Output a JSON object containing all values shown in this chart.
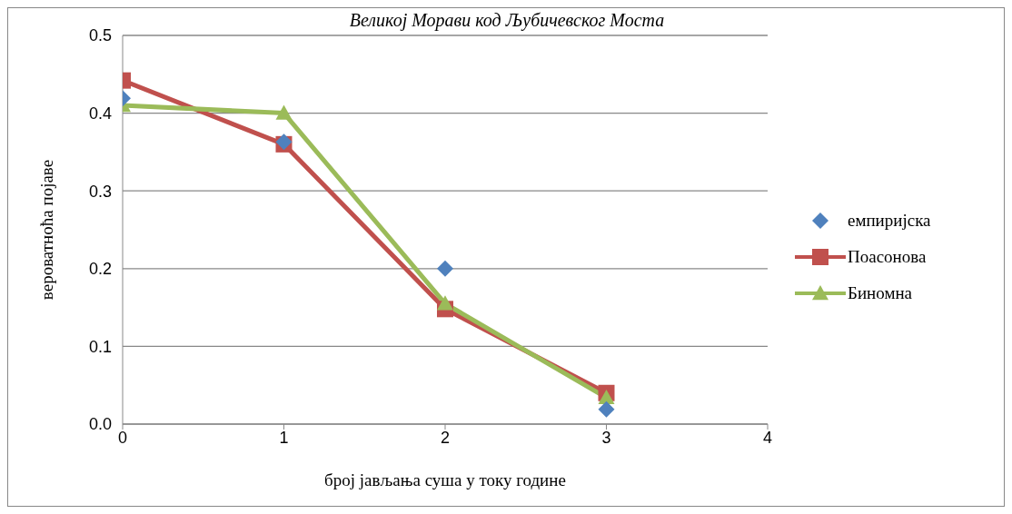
{
  "chart_data": {
    "type": "line",
    "title": "Великој Морави код Љубичевског Моста",
    "xlabel": "број јављања суша у току године",
    "ylabel": "вероватноћа појаве",
    "x": [
      0,
      1,
      2,
      3
    ],
    "xlim": [
      0,
      4
    ],
    "xticks": [
      0,
      1,
      2,
      3,
      4
    ],
    "ylim": [
      0,
      0.5
    ],
    "yticks": [
      {
        "value": 0,
        "label": "0.0"
      },
      0.1,
      0.2,
      0.3,
      0.4,
      0.5
    ],
    "grid": "y",
    "legend": "right",
    "series": [
      {
        "name": "емпиријска",
        "type": "scatter",
        "marker": "diamond",
        "color": "#4f81bd",
        "values": [
          0.419,
          0.363,
          0.2,
          0.019
        ]
      },
      {
        "name": "Поасонова",
        "marker": "square",
        "color": "#c0504d",
        "values": [
          0.442,
          0.36,
          0.148,
          0.04
        ]
      },
      {
        "name": "Биномна",
        "marker": "triangle",
        "color": "#9bbb59",
        "values": [
          0.41,
          0.4,
          0.155,
          0.034
        ]
      }
    ]
  }
}
